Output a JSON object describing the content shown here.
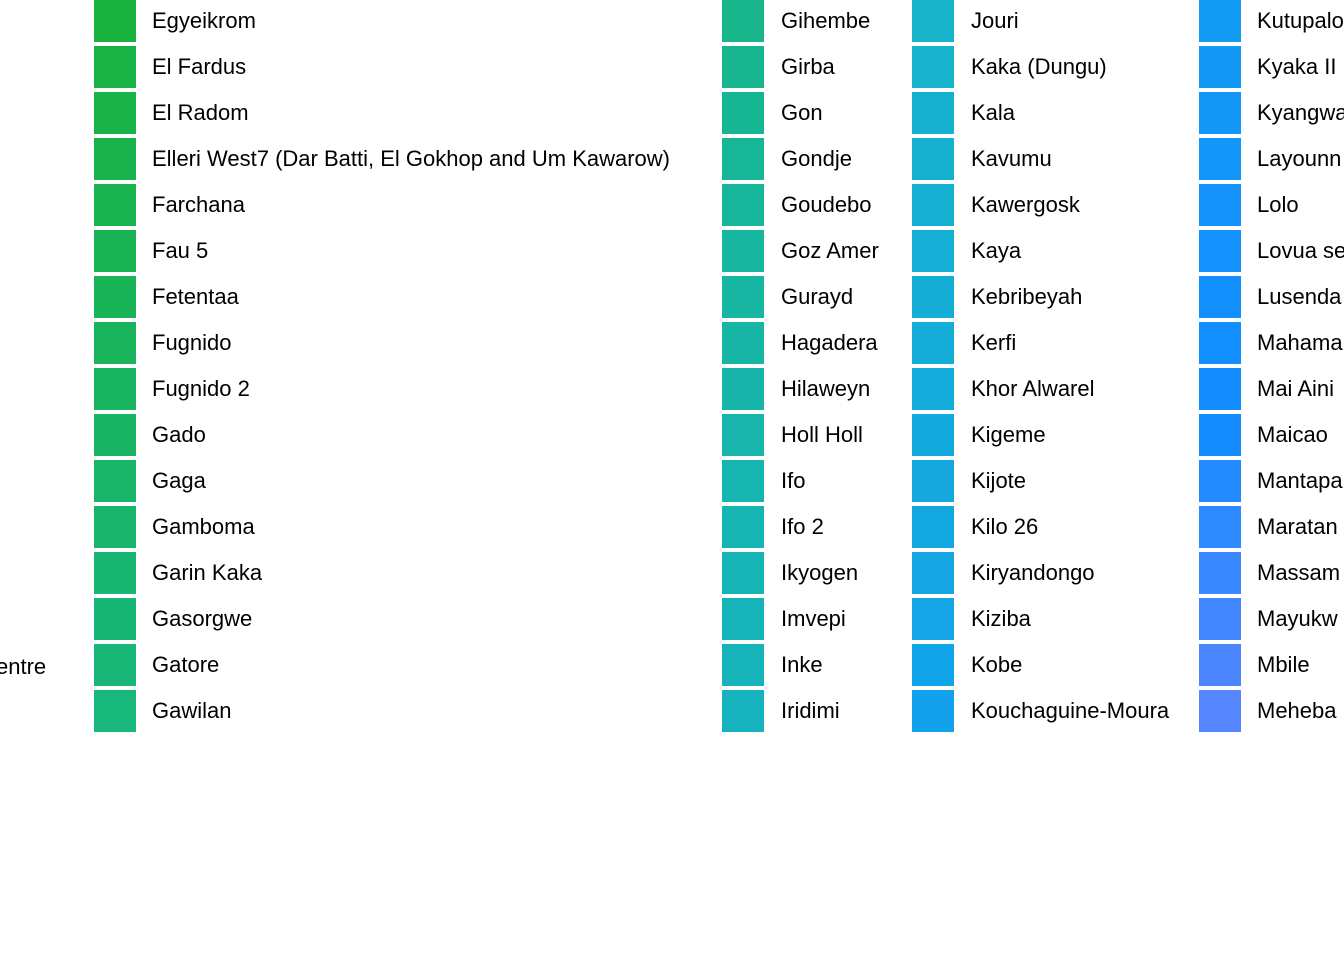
{
  "chart_data": {
    "type": "legend",
    "partial_left_label": "entre",
    "columns": [
      {
        "items": [
          {
            "label": "Egyeikrom",
            "color": "#19B240"
          },
          {
            "label": "El Fardus",
            "color": "#19B244"
          },
          {
            "label": "El Radom",
            "color": "#19B248"
          },
          {
            "label": "Elleri West7 (Dar Batti, El Gokhop and Um Kawarow)",
            "color": "#19B24C"
          },
          {
            "label": "Farchana",
            "color": "#19B350"
          },
          {
            "label": "Fau 5",
            "color": "#19B354"
          },
          {
            "label": "Fetentaa",
            "color": "#19B358"
          },
          {
            "label": "Fugnido",
            "color": "#19B45C"
          },
          {
            "label": "Fugnido 2",
            "color": "#19B460"
          },
          {
            "label": "Gado",
            "color": "#19B564"
          },
          {
            "label": "Gaga",
            "color": "#19B568"
          },
          {
            "label": "Gamboma",
            "color": "#19B56C"
          },
          {
            "label": "Garin Kaka",
            "color": "#18B670"
          },
          {
            "label": "Gasorgwe",
            "color": "#18B674"
          },
          {
            "label": "Gatore",
            "color": "#18B777"
          },
          {
            "label": "Gawilan",
            "color": "#18B77B"
          }
        ]
      },
      {
        "items": [
          {
            "label": "Gihembe",
            "color": "#18B68A"
          },
          {
            "label": "Girba",
            "color": "#18B68E"
          },
          {
            "label": "Gon",
            "color": "#17B692"
          },
          {
            "label": "Gondje",
            "color": "#17B696"
          },
          {
            "label": "Goudebo",
            "color": "#17B69A"
          },
          {
            "label": "Goz Amer",
            "color": "#17B69E"
          },
          {
            "label": "Gurayd",
            "color": "#17B6A2"
          },
          {
            "label": "Hagadera",
            "color": "#17B5A5"
          },
          {
            "label": "Hilaweyn",
            "color": "#17B5A9"
          },
          {
            "label": "Holl Holl",
            "color": "#17B5AC"
          },
          {
            "label": "Ifo",
            "color": "#17B5AF"
          },
          {
            "label": "Ifo 2",
            "color": "#16B4B2"
          },
          {
            "label": "Ikyogen",
            "color": "#16B4B5"
          },
          {
            "label": "Imvepi",
            "color": "#16B4B8"
          },
          {
            "label": "Inke",
            "color": "#16B3BB"
          },
          {
            "label": "Iridimi",
            "color": "#16B3BE"
          }
        ]
      },
      {
        "items": [
          {
            "label": "Jouri",
            "color": "#17B3C8"
          },
          {
            "label": "Kaka (Dungu)",
            "color": "#17B2CB"
          },
          {
            "label": "Kala",
            "color": "#16B1CE"
          },
          {
            "label": "Kavumu",
            "color": "#16B0D0"
          },
          {
            "label": "Kawergosk",
            "color": "#16AFD2"
          },
          {
            "label": "Kaya",
            "color": "#15AED4"
          },
          {
            "label": "Kebribeyah",
            "color": "#15ADD6"
          },
          {
            "label": "Kerfi",
            "color": "#15ACD8"
          },
          {
            "label": "Khor Alwarel",
            "color": "#14AADA"
          },
          {
            "label": "Kigeme",
            "color": "#14A9DC"
          },
          {
            "label": "Kijote",
            "color": "#14A8DE"
          },
          {
            "label": "Kilo 26",
            "color": "#13A7E0"
          },
          {
            "label": "Kiryandongo",
            "color": "#13A6E3"
          },
          {
            "label": "Kiziba",
            "color": "#13A5E6"
          },
          {
            "label": "Kobe",
            "color": "#12A4E9"
          },
          {
            "label": "Kouchaguine-Moura",
            "color": "#12A2EC"
          }
        ]
      },
      {
        "items": [
          {
            "label": "Kutupalo",
            "color": "#139CF3"
          },
          {
            "label": "Kyaka II",
            "color": "#1399F5"
          },
          {
            "label": "Kyangwa",
            "color": "#1397F7"
          },
          {
            "label": "Layounn",
            "color": "#1395F9"
          },
          {
            "label": "Lolo",
            "color": "#1393FB"
          },
          {
            "label": "Lovua se",
            "color": "#1391FC"
          },
          {
            "label": "Lusenda",
            "color": "#1390FD"
          },
          {
            "label": "Mahama",
            "color": "#138EFE"
          },
          {
            "label": "Mai Aini",
            "color": "#138CFF"
          },
          {
            "label": "Maicao",
            "color": "#148BFF"
          },
          {
            "label": "Mantapa",
            "color": "#2289FF"
          },
          {
            "label": "Maratan",
            "color": "#2F89FF"
          },
          {
            "label": "Massam",
            "color": "#3A88FF"
          },
          {
            "label": "Mayukw",
            "color": "#4387FF"
          },
          {
            "label": "Mbile",
            "color": "#4C86FF"
          },
          {
            "label": "Meheba",
            "color": "#5585FF"
          }
        ]
      }
    ]
  }
}
